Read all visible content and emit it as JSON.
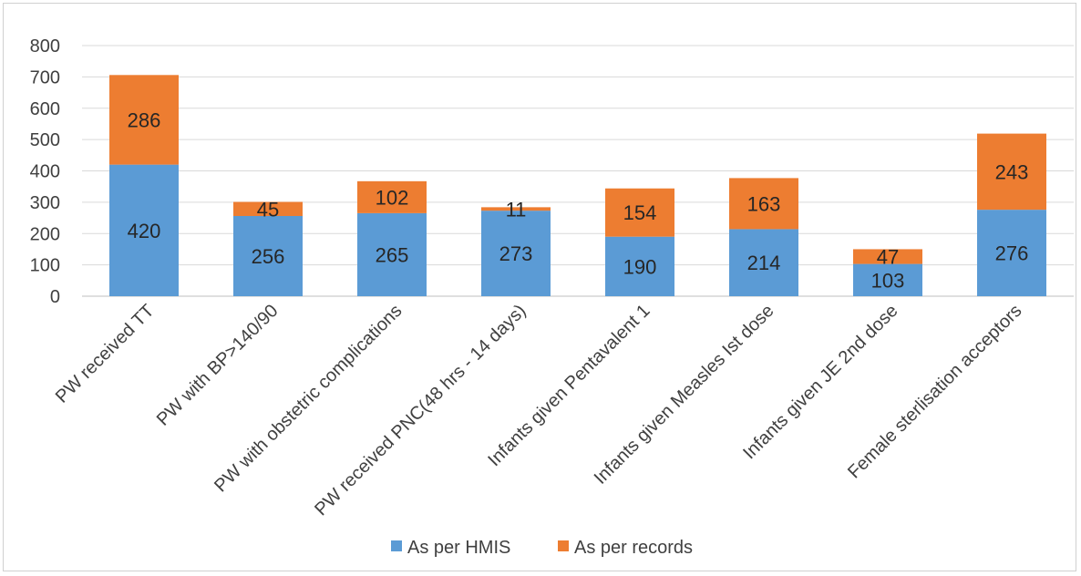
{
  "chart_data": {
    "type": "bar",
    "stacked": true,
    "categories": [
      "PW received TT",
      "PW with BP>140/90",
      "PW with obstetric complications",
      "PW received PNC(48 hrs - 14 days)",
      "Infants given Pentavalent 1",
      "Infants given Measles Ist dose",
      "Infants given JE 2nd dose",
      "Female sterlisation acceptors"
    ],
    "series": [
      {
        "name": "As per HMIS",
        "color": "#5b9bd5",
        "values": [
          420,
          256,
          265,
          273,
          190,
          214,
          103,
          276
        ]
      },
      {
        "name": "As per records",
        "color": "#ed7d31",
        "values": [
          286,
          45,
          102,
          11,
          154,
          163,
          47,
          243
        ]
      }
    ],
    "yticks": [
      "0",
      "100",
      "200",
      "300",
      "400",
      "500",
      "600",
      "700",
      "800"
    ],
    "ylim": [
      0,
      800
    ],
    "grid": true,
    "legend_position": "bottom"
  }
}
